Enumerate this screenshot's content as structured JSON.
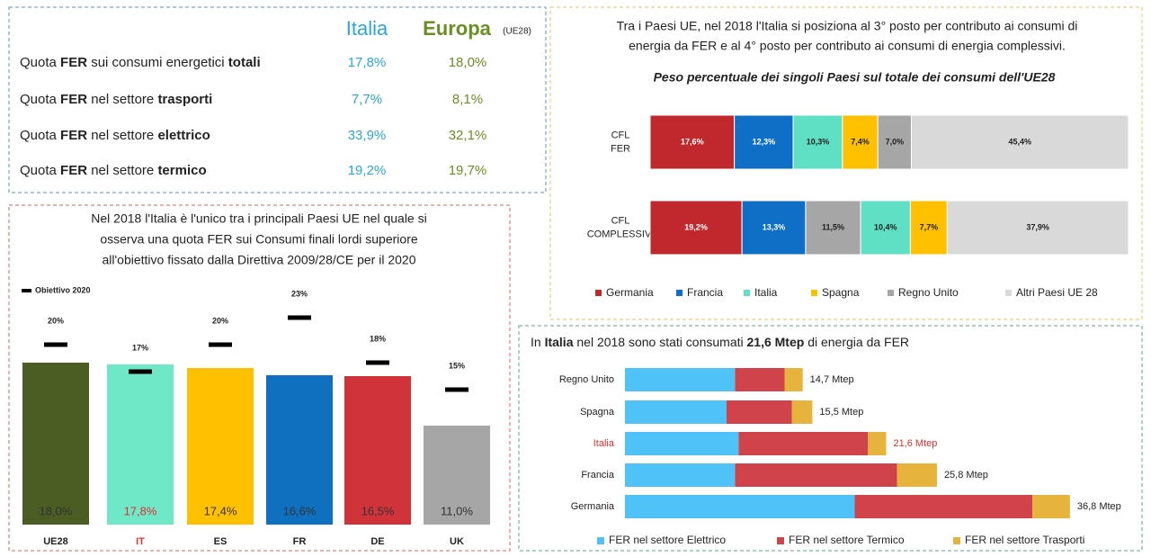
{
  "table": {
    "header": {
      "italia": "Italia",
      "europa": "Europa",
      "europa_note": "(UE28)",
      "italia_color": "#2aa8d8",
      "europa_color": "#6b8e23"
    },
    "rows": [
      {
        "label": [
          "Quota",
          "FER",
          "sui consumi energetici",
          "totali"
        ],
        "italia": "17,8%",
        "europa": "18,0%"
      },
      {
        "label": [
          "Quota",
          "FER",
          "nel settore",
          "trasporti"
        ],
        "italia": "7,7%",
        "europa": "8,1%"
      },
      {
        "label": [
          "Quota",
          "FER",
          "nel settore",
          "elettrico"
        ],
        "italia": "33,9%",
        "europa": "32,1%"
      },
      {
        "label": [
          "Quota",
          "FER",
          "nel settore",
          "termico"
        ],
        "italia": "19,2%",
        "europa": "19,7%"
      }
    ]
  },
  "chart_data": [
    {
      "type": "bar",
      "title": [
        "Nel 2018 l'Italia è l'unico tra i principali Paesi UE nel quale si",
        "osserva una quota FER sui Consumi finali lordi superiore",
        "all'obiettivo fissato dalla Direttiva 2009/28/CE per il 2020"
      ],
      "categories": [
        "UE28",
        "IT",
        "ES",
        "FR",
        "DE",
        "UK"
      ],
      "highlight": "IT",
      "highlight_color": "#e03030",
      "ylim": [
        0,
        25
      ],
      "series": [
        {
          "name": "Quota FER",
          "colors": [
            "#4b5d23",
            "#6fe8c8",
            "#ffc000",
            "#0f70c0",
            "#d0343a",
            "#a6a6a6"
          ],
          "values": [
            18.0,
            17.8,
            17.4,
            16.6,
            16.5,
            11.0
          ],
          "value_labels": [
            "18,0%",
            "17,8%",
            "17,4%",
            "16,6%",
            "16,5%",
            "11,0%"
          ]
        },
        {
          "name": "Obiettivo 2020",
          "color": "#000000",
          "values": [
            20,
            17,
            20,
            23,
            18,
            15
          ],
          "value_labels": [
            "20%",
            "17%",
            "20%",
            "23%",
            "18%",
            "15%"
          ]
        }
      ]
    },
    {
      "type": "stacked_hbar_100",
      "title": [
        "Tra i Paesi UE, nel 2018 l'Italia si posiziona al 3° posto per contributo ai consumi di",
        "energia da FER e al 4° posto per contributo ai consumi di energia complessivi."
      ],
      "subtitle": "Peso percentuale dei singoli Paesi sul totale dei consumi dell'UE28",
      "categories": [
        [
          "CFL",
          "FER"
        ],
        [
          "CFL",
          "COMPLESSIVI"
        ]
      ],
      "xlim": [
        0,
        100
      ],
      "stack_order": [
        [
          0,
          1,
          2,
          3,
          4,
          5
        ],
        [
          0,
          1,
          4,
          2,
          3,
          5
        ]
      ],
      "series": [
        {
          "name": "Germania",
          "color": "#c0282e",
          "label_color": "#ffffff",
          "values": [
            17.6,
            19.2
          ],
          "value_labels": [
            "17,6%",
            "19,2%"
          ]
        },
        {
          "name": "Francia",
          "color": "#0f6fc6",
          "label_color": "#ffffff",
          "values": [
            12.3,
            13.3
          ],
          "value_labels": [
            "12,3%",
            "13,3%"
          ]
        },
        {
          "name": "Italia",
          "color": "#5fe0c5",
          "label_color": "#222222",
          "values": [
            10.3,
            10.4
          ],
          "value_labels": [
            "10,3%",
            "10,4%"
          ]
        },
        {
          "name": "Spagna",
          "color": "#ffc000",
          "label_color": "#222222",
          "values": [
            7.4,
            7.7
          ],
          "value_labels": [
            "7,4%",
            "7,7%"
          ]
        },
        {
          "name": "Regno Unito",
          "color": "#a6a6a6",
          "label_color": "#222222",
          "values": [
            7.0,
            11.5
          ],
          "value_labels": [
            "7,0%",
            "11,5%"
          ]
        },
        {
          "name": "Altri Paesi UE 28",
          "color": "#d9d9d9",
          "label_color": "#222222",
          "values": [
            45.4,
            37.9
          ],
          "value_labels": [
            "45,4%",
            "37,9%"
          ]
        }
      ]
    },
    {
      "type": "stacked_hbar",
      "title": [
        "In",
        "Italia",
        "nel 2018 sono stati consumati",
        "21,6 Mtep",
        "di energia da FER"
      ],
      "categories": [
        "Regno Unito",
        "Spagna",
        "Italia",
        "Francia",
        "Germania"
      ],
      "highlight": "Italia",
      "highlight_color": "#e03030",
      "xlim": [
        0,
        38
      ],
      "series": [
        {
          "name": "FER nel settore Elettrico",
          "color": "#4fc3f7",
          "values": [
            9.1,
            8.4,
            9.4,
            9.1,
            19.0
          ]
        },
        {
          "name": "FER nel settore Termico",
          "color": "#d0434b",
          "values": [
            4.1,
            5.4,
            10.7,
            13.4,
            14.7
          ]
        },
        {
          "name": "FER nel settore Trasporti",
          "color": "#e6b43c",
          "values": [
            1.5,
            1.7,
            1.5,
            3.3,
            3.1
          ]
        }
      ],
      "totals": [
        14.7,
        15.5,
        21.6,
        25.8,
        36.8
      ],
      "total_labels": [
        "14,7 Mtep",
        "15,5 Mtep",
        "21,6 Mtep",
        "25,8 Mtep",
        "36,8 Mtep"
      ]
    }
  ]
}
